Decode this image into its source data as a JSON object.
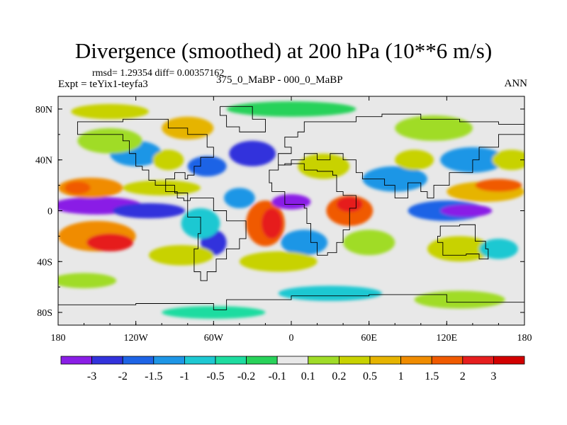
{
  "chart_data": {
    "type": "heatmap",
    "title": "Divergence (smoothed) at 200 hPa (10**6 m/s)",
    "stats": "rmsd= 1.29354 diff= 0.00357162",
    "left_label": "Expt = teYix1-teyfa3",
    "center_label": "375_0_MaBP - 000_0_MaBP",
    "right_label": "ANN",
    "x_range": [
      -180,
      180
    ],
    "y_range": [
      -90,
      90
    ],
    "x_ticks": [
      {
        "value": -180,
        "label": "180"
      },
      {
        "value": -120,
        "label": "120W"
      },
      {
        "value": -60,
        "label": "60W"
      },
      {
        "value": 0,
        "label": "0"
      },
      {
        "value": 60,
        "label": "60E"
      },
      {
        "value": 120,
        "label": "120E"
      },
      {
        "value": 180,
        "label": "180"
      }
    ],
    "y_ticks": [
      {
        "value": 80,
        "label": "80N"
      },
      {
        "value": 40,
        "label": "40N"
      },
      {
        "value": 0,
        "label": "0"
      },
      {
        "value": -40,
        "label": "40S"
      },
      {
        "value": -80,
        "label": "80S"
      }
    ],
    "colorbar": {
      "levels": [
        "-3",
        "-2",
        "-1.5",
        "-1",
        "-0.5",
        "-0.2",
        "-0.1",
        "0.1",
        "0.2",
        "0.5",
        "1",
        "1.5",
        "2",
        "3"
      ],
      "colors": [
        "#8a1ee6",
        "#3232dc",
        "#1e64e6",
        "#1e96e6",
        "#1ec8d2",
        "#1edca0",
        "#28d25a",
        "#e8e8e8",
        "#a0dc28",
        "#c8d200",
        "#e6b400",
        "#f08c00",
        "#f05a00",
        "#e61e1e",
        "#d20000"
      ]
    },
    "blobs": [
      {
        "lon": -150,
        "lat": 4,
        "rx": 35,
        "ry": 7,
        "level": -3
      },
      {
        "lon": -110,
        "lat": 0,
        "rx": 28,
        "ry": 6,
        "level": -2
      },
      {
        "lon": -150,
        "lat": -20,
        "rx": 30,
        "ry": 12,
        "level": 1.5
      },
      {
        "lon": -140,
        "lat": -25,
        "rx": 18,
        "ry": 7,
        "level": 3
      },
      {
        "lon": -155,
        "lat": 18,
        "rx": 25,
        "ry": 8,
        "level": 1.5
      },
      {
        "lon": -165,
        "lat": 18,
        "rx": 10,
        "ry": 5,
        "level": 2
      },
      {
        "lon": -100,
        "lat": 18,
        "rx": 30,
        "ry": 6,
        "level": 0.5
      },
      {
        "lon": -120,
        "lat": 45,
        "rx": 20,
        "ry": 10,
        "level": -1
      },
      {
        "lon": -95,
        "lat": 40,
        "rx": 12,
        "ry": 8,
        "level": 0.5
      },
      {
        "lon": -140,
        "lat": 55,
        "rx": 25,
        "ry": 10,
        "level": 0.2
      },
      {
        "lon": -80,
        "lat": 65,
        "rx": 20,
        "ry": 9,
        "level": 1
      },
      {
        "lon": -65,
        "lat": 35,
        "rx": 15,
        "ry": 8,
        "level": -1.5
      },
      {
        "lon": -30,
        "lat": 45,
        "rx": 18,
        "ry": 10,
        "level": -2
      },
      {
        "lon": -40,
        "lat": 10,
        "rx": 12,
        "ry": 8,
        "level": -1
      },
      {
        "lon": -20,
        "lat": -10,
        "rx": 15,
        "ry": 18,
        "level": 2
      },
      {
        "lon": -15,
        "lat": -10,
        "rx": 8,
        "ry": 12,
        "level": 3
      },
      {
        "lon": -60,
        "lat": -25,
        "rx": 10,
        "ry": 10,
        "level": -2
      },
      {
        "lon": -70,
        "lat": -10,
        "rx": 15,
        "ry": 12,
        "level": -0.5
      },
      {
        "lon": -85,
        "lat": -35,
        "rx": 25,
        "ry": 8,
        "level": 0.5
      },
      {
        "lon": 0,
        "lat": 7,
        "rx": 15,
        "ry": 6,
        "level": -3
      },
      {
        "lon": 25,
        "lat": 35,
        "rx": 20,
        "ry": 10,
        "level": 0.5
      },
      {
        "lon": 45,
        "lat": 0,
        "rx": 18,
        "ry": 12,
        "level": 2
      },
      {
        "lon": 45,
        "lat": 5,
        "rx": 10,
        "ry": 6,
        "level": 3
      },
      {
        "lon": 10,
        "lat": -25,
        "rx": 18,
        "ry": 10,
        "level": -1
      },
      {
        "lon": -10,
        "lat": -40,
        "rx": 30,
        "ry": 8,
        "level": 0.5
      },
      {
        "lon": 60,
        "lat": -25,
        "rx": 20,
        "ry": 10,
        "level": 0.2
      },
      {
        "lon": 80,
        "lat": 25,
        "rx": 25,
        "ry": 10,
        "level": -1
      },
      {
        "lon": 95,
        "lat": 40,
        "rx": 15,
        "ry": 8,
        "level": 0.5
      },
      {
        "lon": 120,
        "lat": 0,
        "rx": 30,
        "ry": 8,
        "level": -1.5
      },
      {
        "lon": 135,
        "lat": 0,
        "rx": 20,
        "ry": 5,
        "level": -3
      },
      {
        "lon": 150,
        "lat": 15,
        "rx": 30,
        "ry": 8,
        "level": 1
      },
      {
        "lon": 160,
        "lat": 20,
        "rx": 18,
        "ry": 5,
        "level": 2
      },
      {
        "lon": 140,
        "lat": 40,
        "rx": 25,
        "ry": 10,
        "level": -1
      },
      {
        "lon": 170,
        "lat": 40,
        "rx": 15,
        "ry": 8,
        "level": 0.5
      },
      {
        "lon": 110,
        "lat": 65,
        "rx": 30,
        "ry": 10,
        "level": 0.2
      },
      {
        "lon": 130,
        "lat": -30,
        "rx": 25,
        "ry": 10,
        "level": 0.5
      },
      {
        "lon": 160,
        "lat": -30,
        "rx": 15,
        "ry": 8,
        "level": -0.5
      },
      {
        "lon": -160,
        "lat": -55,
        "rx": 25,
        "ry": 6,
        "level": 0.2
      },
      {
        "lon": -100,
        "lat": -65,
        "rx": 30,
        "ry": 6,
        "level": 0.1
      },
      {
        "lon": 30,
        "lat": -65,
        "rx": 40,
        "ry": 6,
        "level": -0.5
      },
      {
        "lon": 130,
        "lat": -70,
        "rx": 35,
        "ry": 7,
        "level": 0.2
      },
      {
        "lon": -60,
        "lat": -80,
        "rx": 40,
        "ry": 5,
        "level": -0.2
      },
      {
        "lon": 100,
        "lat": -85,
        "rx": 45,
        "ry": 4,
        "level": 0.1
      },
      {
        "lon": 0,
        "lat": 80,
        "rx": 50,
        "ry": 6,
        "level": -0.1
      },
      {
        "lon": -140,
        "lat": 78,
        "rx": 30,
        "ry": 6,
        "level": 0.5
      }
    ],
    "coastlines": [
      {
        "name": "north-america",
        "points": [
          [
            -165,
            68
          ],
          [
            -150,
            70
          ],
          [
            -130,
            70
          ],
          [
            -115,
            72
          ],
          [
            -95,
            72
          ],
          [
            -80,
            65
          ],
          [
            -65,
            60
          ],
          [
            -60,
            50
          ],
          [
            -70,
            42
          ],
          [
            -75,
            35
          ],
          [
            -80,
            28
          ],
          [
            -82,
            25
          ],
          [
            -90,
            30
          ],
          [
            -97,
            25
          ],
          [
            -97,
            18
          ],
          [
            -88,
            15
          ],
          [
            -83,
            10
          ],
          [
            -80,
            8
          ],
          [
            -90,
            14
          ],
          [
            -105,
            20
          ],
          [
            -110,
            24
          ],
          [
            -115,
            32
          ],
          [
            -120,
            35
          ],
          [
            -125,
            45
          ],
          [
            -130,
            55
          ],
          [
            -150,
            60
          ],
          [
            -165,
            60
          ],
          [
            -165,
            68
          ]
        ]
      },
      {
        "name": "south-america",
        "points": [
          [
            -78,
            8
          ],
          [
            -60,
            10
          ],
          [
            -50,
            0
          ],
          [
            -35,
            -8
          ],
          [
            -40,
            -22
          ],
          [
            -50,
            -30
          ],
          [
            -58,
            -38
          ],
          [
            -65,
            -48
          ],
          [
            -70,
            -55
          ],
          [
            -75,
            -48
          ],
          [
            -72,
            -30
          ],
          [
            -70,
            -18
          ],
          [
            -80,
            -5
          ],
          [
            -78,
            8
          ]
        ]
      },
      {
        "name": "africa-eurasia",
        "points": [
          [
            -15,
            15
          ],
          [
            -17,
            22
          ],
          [
            -10,
            32
          ],
          [
            -5,
            36
          ],
          [
            10,
            37
          ],
          [
            20,
            32
          ],
          [
            32,
            31
          ],
          [
            35,
            28
          ],
          [
            40,
            15
          ],
          [
            50,
            12
          ],
          [
            45,
            2
          ],
          [
            40,
            -15
          ],
          [
            35,
            -25
          ],
          [
            28,
            -33
          ],
          [
            20,
            -35
          ],
          [
            15,
            -25
          ],
          [
            12,
            -10
          ],
          [
            10,
            2
          ],
          [
            5,
            5
          ],
          [
            -5,
            5
          ],
          [
            -15,
            15
          ]
        ]
      },
      {
        "name": "eurasia-north",
        "points": [
          [
            -10,
            36
          ],
          [
            0,
            45
          ],
          [
            -5,
            50
          ],
          [
            5,
            58
          ],
          [
            10,
            62
          ],
          [
            25,
            70
          ],
          [
            50,
            70
          ],
          [
            70,
            74
          ],
          [
            100,
            76
          ],
          [
            130,
            72
          ],
          [
            160,
            70
          ],
          [
            180,
            68
          ],
          [
            180,
            60
          ],
          [
            160,
            60
          ],
          [
            145,
            50
          ],
          [
            140,
            40
          ],
          [
            122,
            30
          ],
          [
            110,
            20
          ],
          [
            105,
            10
          ],
          [
            100,
            15
          ],
          [
            90,
            22
          ],
          [
            80,
            10
          ],
          [
            72,
            20
          ],
          [
            60,
            25
          ],
          [
            55,
            25
          ],
          [
            50,
            30
          ],
          [
            40,
            40
          ],
          [
            30,
            45
          ],
          [
            20,
            40
          ],
          [
            10,
            45
          ],
          [
            0,
            40
          ],
          [
            -10,
            36
          ]
        ]
      },
      {
        "name": "australia",
        "points": [
          [
            115,
            -20
          ],
          [
            130,
            -12
          ],
          [
            142,
            -11
          ],
          [
            150,
            -24
          ],
          [
            152,
            -30
          ],
          [
            145,
            -38
          ],
          [
            135,
            -34
          ],
          [
            117,
            -35
          ],
          [
            113,
            -25
          ],
          [
            115,
            -20
          ]
        ]
      },
      {
        "name": "antarctica",
        "points": [
          [
            -180,
            -78
          ],
          [
            -120,
            -74
          ],
          [
            -60,
            -73
          ],
          [
            -50,
            -78
          ],
          [
            0,
            -70
          ],
          [
            60,
            -67
          ],
          [
            120,
            -66
          ],
          [
            180,
            -72
          ]
        ]
      },
      {
        "name": "greenland",
        "points": [
          [
            -55,
            82
          ],
          [
            -30,
            82
          ],
          [
            -20,
            72
          ],
          [
            -40,
            62
          ],
          [
            -50,
            66
          ],
          [
            -55,
            75
          ],
          [
            -55,
            82
          ]
        ]
      }
    ]
  }
}
